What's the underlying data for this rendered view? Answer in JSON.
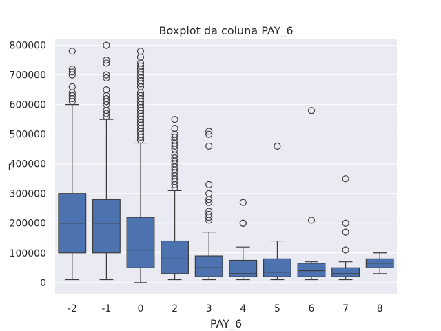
{
  "chart_data": {
    "type": "boxplot",
    "title": "Boxplot da coluna PAY_6",
    "xlabel": "PAY_6",
    "ylabel": "_",
    "ylim": [
      -40000,
      820000
    ],
    "yticks": [
      0,
      100000,
      200000,
      300000,
      400000,
      500000,
      600000,
      700000,
      800000
    ],
    "ytick_labels": [
      "0",
      "100000",
      "200000",
      "300000",
      "400000",
      "500000",
      "600000",
      "700000",
      "800000"
    ],
    "grid": true,
    "box_color": "#4c72b0",
    "background_color": "#eaeaf2",
    "categories": [
      "-2",
      "-1",
      "0",
      "2",
      "3",
      "4",
      "5",
      "6",
      "7",
      "8"
    ],
    "boxes": [
      {
        "category": "-2",
        "whisker_low": 10000,
        "q1": 100000,
        "median": 200000,
        "q3": 300000,
        "whisker_high": 600000,
        "outliers": [
          610000,
          620000,
          630000,
          640000,
          660000,
          700000,
          710000,
          720000,
          780000
        ]
      },
      {
        "category": "-1",
        "whisker_low": 10000,
        "q1": 100000,
        "median": 200000,
        "q3": 280000,
        "whisker_high": 550000,
        "outliers": [
          560000,
          570000,
          580000,
          600000,
          610000,
          620000,
          630000,
          650000,
          690000,
          700000,
          740000,
          750000,
          800000
        ]
      },
      {
        "category": "0",
        "whisker_low": 0,
        "q1": 50000,
        "median": 110000,
        "q3": 220000,
        "whisker_high": 470000,
        "outliers": [
          480000,
          490000,
          500000,
          510000,
          520000,
          530000,
          540000,
          550000,
          560000,
          570000,
          580000,
          590000,
          600000,
          610000,
          620000,
          630000,
          640000,
          660000,
          670000,
          680000,
          690000,
          700000,
          710000,
          720000,
          730000,
          740000,
          760000,
          780000
        ]
      },
      {
        "category": "2",
        "whisker_low": 10000,
        "q1": 30000,
        "median": 80000,
        "q3": 140000,
        "whisker_high": 310000,
        "outliers": [
          320000,
          330000,
          340000,
          350000,
          360000,
          370000,
          380000,
          390000,
          400000,
          410000,
          420000,
          430000,
          450000,
          460000,
          470000,
          480000,
          490000,
          500000,
          520000,
          550000
        ]
      },
      {
        "category": "3",
        "whisker_low": 10000,
        "q1": 20000,
        "median": 50000,
        "q3": 90000,
        "whisker_high": 170000,
        "outliers": [
          210000,
          220000,
          230000,
          240000,
          270000,
          280000,
          300000,
          330000,
          460000,
          500000,
          510000
        ]
      },
      {
        "category": "4",
        "whisker_low": 10000,
        "q1": 20000,
        "median": 30000,
        "q3": 75000,
        "whisker_high": 120000,
        "outliers": [
          200000,
          200000,
          270000
        ]
      },
      {
        "category": "5",
        "whisker_low": 10000,
        "q1": 20000,
        "median": 35000,
        "q3": 80000,
        "whisker_high": 140000,
        "outliers": [
          460000
        ]
      },
      {
        "category": "6",
        "whisker_low": 10000,
        "q1": 20000,
        "median": 40000,
        "q3": 65000,
        "whisker_high": 70000,
        "outliers": [
          210000,
          580000
        ]
      },
      {
        "category": "7",
        "whisker_low": 10000,
        "q1": 20000,
        "median": 30000,
        "q3": 50000,
        "whisker_high": 70000,
        "outliers": [
          110000,
          170000,
          200000,
          350000
        ]
      },
      {
        "category": "8",
        "whisker_low": 30000,
        "q1": 50000,
        "median": 65000,
        "q3": 80000,
        "whisker_high": 100000,
        "outliers": []
      }
    ]
  }
}
